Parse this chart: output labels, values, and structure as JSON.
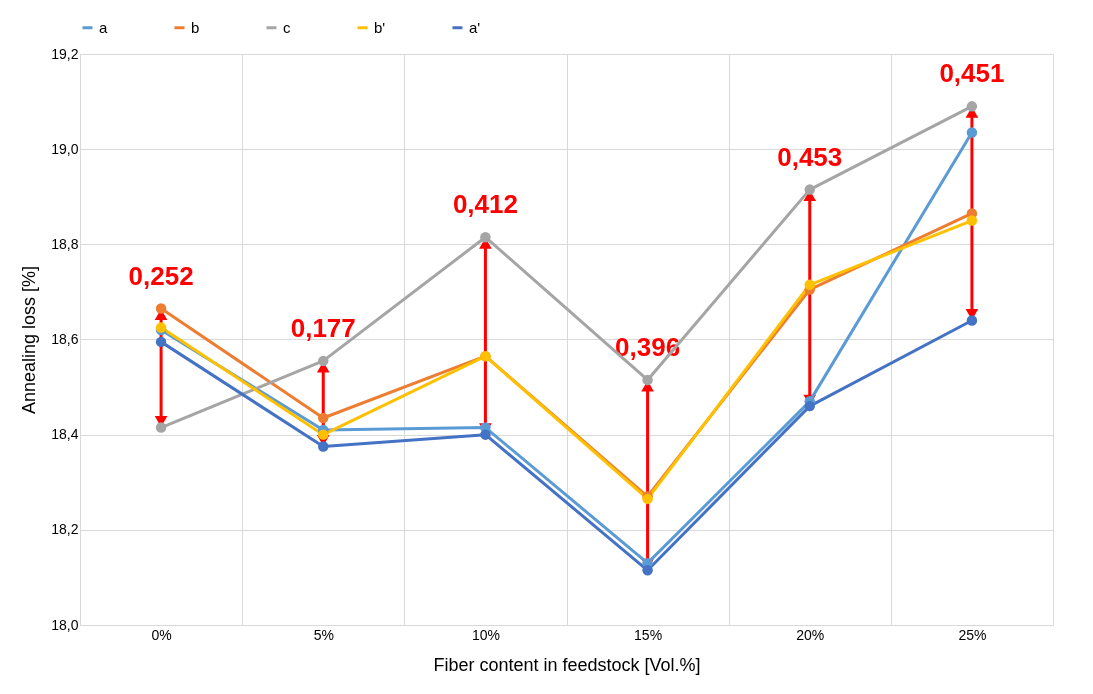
{
  "chart_data": {
    "type": "line",
    "xlabel": "Fiber content in feedstock [Vol.%]",
    "ylabel": "Annealing loss [%]",
    "categories": [
      "0%",
      "5%",
      "10%",
      "15%",
      "20%",
      "25%"
    ],
    "series": [
      {
        "name": "a",
        "color": "#5b9bd5",
        "values": [
          18.62,
          18.41,
          18.415,
          18.13,
          18.47,
          19.035
        ]
      },
      {
        "name": "b",
        "color": "#ed7d31",
        "values": [
          18.665,
          18.435,
          18.565,
          18.27,
          18.705,
          18.865
        ]
      },
      {
        "name": "c",
        "color": "#a5a5a5",
        "values": [
          18.415,
          18.555,
          18.815,
          18.515,
          18.915,
          19.09
        ]
      },
      {
        "name": "b'",
        "color": "#ffc000",
        "values": [
          18.625,
          18.4,
          18.565,
          18.265,
          18.715,
          18.85
        ]
      },
      {
        "name": "a'",
        "color": "#4472c4",
        "values": [
          18.595,
          18.375,
          18.4,
          18.115,
          18.46,
          18.64
        ]
      }
    ],
    "ylim": [
      18.0,
      19.2
    ],
    "yticks": [
      {
        "value": 18.0,
        "label": "18,0"
      },
      {
        "value": 18.2,
        "label": "18,2"
      },
      {
        "value": 18.4,
        "label": "18,4"
      },
      {
        "value": 18.6,
        "label": "18,6"
      },
      {
        "value": 18.8,
        "label": "18,8"
      },
      {
        "value": 19.0,
        "label": "19,0"
      },
      {
        "value": 19.2,
        "label": "19,2"
      }
    ],
    "annotations": [
      "0,252",
      "0,177",
      "0,412",
      "0,396",
      "0,453",
      "0,451"
    ],
    "grid": true,
    "legend": "top",
    "marker": "circle",
    "line_style": "solid"
  }
}
